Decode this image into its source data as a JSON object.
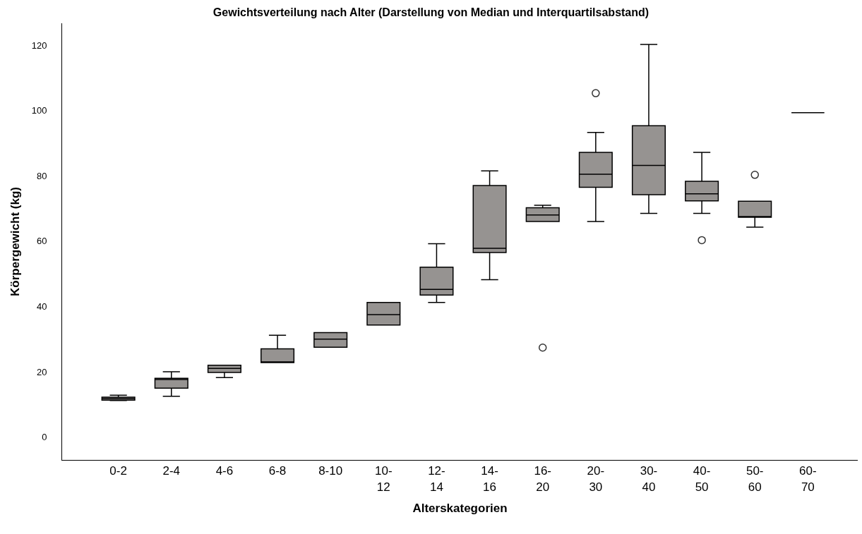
{
  "chart_data": {
    "type": "box",
    "title": "Gewichtsverteilung nach Alter (Darstellung von Median und Interquartilsabstand)",
    "xlabel": "Alterskategorien",
    "ylabel": "Körpergewicht (kg)",
    "categories": [
      "0-2",
      "2-4",
      "4-6",
      "6-8",
      "8-10",
      "10-12",
      "12-14",
      "14-16",
      "16-20",
      "20-30",
      "30-40",
      "40-50",
      "50-60",
      "60-70"
    ],
    "colors": [
      "#969391",
      "#969391",
      "#969391",
      "#969391",
      "#969391",
      "#969391",
      "#969391",
      "#969391",
      "#969391",
      "#969391",
      "#969391",
      "#969391",
      "#969391",
      "#000000"
    ],
    "boxes": [
      {
        "low": 11.2,
        "q1": 11.3,
        "median": 11.8,
        "q3": 12.2,
        "high": 12.8
      },
      {
        "low": 12.5,
        "q1": 15,
        "median": 17.6,
        "q3": 18,
        "high": 20
      },
      {
        "low": 18.2,
        "q1": 19.8,
        "median": 21,
        "q3": 22,
        "high": 22
      },
      {
        "low": 22.8,
        "q1": 22.8,
        "median": 22.8,
        "q3": 27,
        "high": 31.2
      },
      {
        "low": 27.5,
        "q1": 27.5,
        "median": 30,
        "q3": 32,
        "high": 32
      },
      {
        "low": 34.3,
        "q1": 34.3,
        "median": 37.5,
        "q3": 41.2,
        "high": 41.2
      },
      {
        "low": 41.2,
        "q1": 43.5,
        "median": 45.2,
        "q3": 52,
        "high": 59.2
      },
      {
        "low": 48.2,
        "q1": 56.5,
        "median": 57.8,
        "q3": 77,
        "high": 81.5
      },
      {
        "low": 66,
        "q1": 66,
        "median": 68,
        "q3": 70.2,
        "high": 71,
        "outliers": [
          27.4
        ]
      },
      {
        "low": 66,
        "q1": 76.5,
        "median": 80.5,
        "q3": 87.2,
        "high": 93.3,
        "outliers": [
          105.3
        ]
      },
      {
        "low": 68.5,
        "q1": 74.2,
        "median": 83.2,
        "q3": 95.3,
        "high": 120.2
      },
      {
        "low": 68.5,
        "q1": 72.3,
        "median": 74.5,
        "q3": 78.3,
        "high": 87.2,
        "outliers": [
          60.3
        ]
      },
      {
        "low": 64.3,
        "q1": 67.3,
        "median": 67.3,
        "q3": 72.2,
        "high": 72.2,
        "outliers": [
          80.3
        ]
      },
      {
        "low": 99.3,
        "q1": 99.3,
        "median": 99.3,
        "q3": 99.3,
        "high": 99.3
      }
    ],
    "ylim": [
      -7,
      126.7
    ],
    "yticks": [
      0,
      20,
      40,
      60,
      80,
      100,
      120
    ]
  }
}
